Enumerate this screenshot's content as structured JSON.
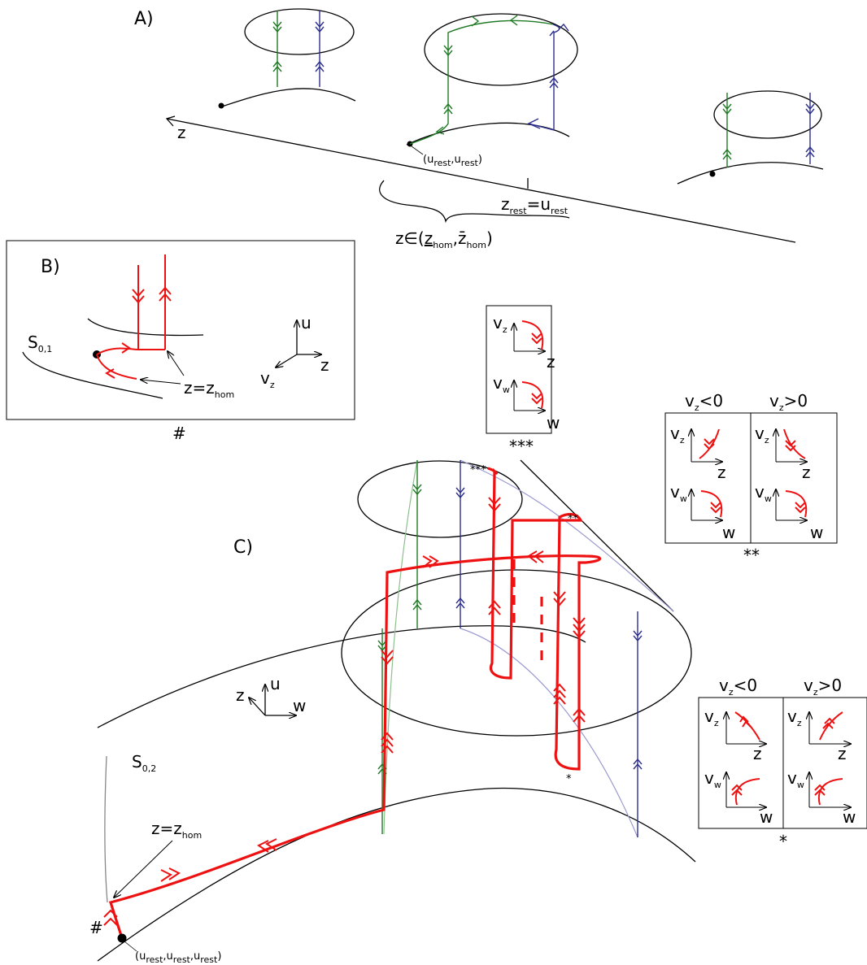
{
  "panels": {
    "A": {
      "label": "A)",
      "axis": "z",
      "point": {
        "base": "(u",
        "s1": "rest",
        "mid": ",u",
        "s2": "rest",
        "end": ")"
      },
      "zrest": {
        "z": "z",
        "zsub": "rest",
        "eq": "=u",
        "usub": "rest"
      },
      "interval": {
        "pre": "z∈(",
        "z1": "z",
        "z1sub": "hom",
        "comma": ",",
        "z2": "z̄",
        "z2sub": "hom",
        "end": ")"
      }
    },
    "B": {
      "label": "B)",
      "surface": {
        "main": "S",
        "sub": "0,1"
      },
      "zhom": {
        "main": "z=z",
        "sub": "hom"
      },
      "axes": {
        "u": "u",
        "z": "z",
        "vz": "v",
        "vzsub": "z"
      },
      "mark": "#"
    },
    "C": {
      "label": "C)",
      "surface": {
        "main": "S",
        "sub": "0,2"
      },
      "zhom": {
        "main": "z=z",
        "sub": "hom"
      },
      "axes": {
        "u": "u",
        "z": "z",
        "w": "w"
      },
      "mark": "#",
      "point": {
        "base": "(u",
        "s1": "rest",
        "mid": ",u",
        "s2": "rest",
        "mid2": ",u",
        "s3": "rest",
        "end": ")"
      },
      "star1": "*",
      "star2": "**",
      "star3": "***"
    }
  },
  "insets": {
    "triple": {
      "caption": "***",
      "v": "v",
      "vzsub": "z",
      "vwsub": "w",
      "z": "z",
      "w": "w"
    },
    "double": {
      "caption": "**",
      "neg": "v",
      "negsub": "z",
      "negrel": "<0",
      "pos": "v",
      "possub": "z",
      "posrel": ">0",
      "v": "v",
      "vzsub": "z",
      "vwsub": "w",
      "z": "z",
      "w": "w"
    },
    "single": {
      "caption": "*",
      "neg": "v",
      "negsub": "z",
      "negrel": "<0",
      "pos": "v",
      "possub": "z",
      "posrel": ">0",
      "v": "v",
      "vzsub": "z",
      "vwsub": "w",
      "z": "z",
      "w": "w"
    }
  },
  "colors": {
    "red": "#ee1111",
    "green": "#1f7a24",
    "blue": "#2d2f8f",
    "black": "#000000"
  }
}
